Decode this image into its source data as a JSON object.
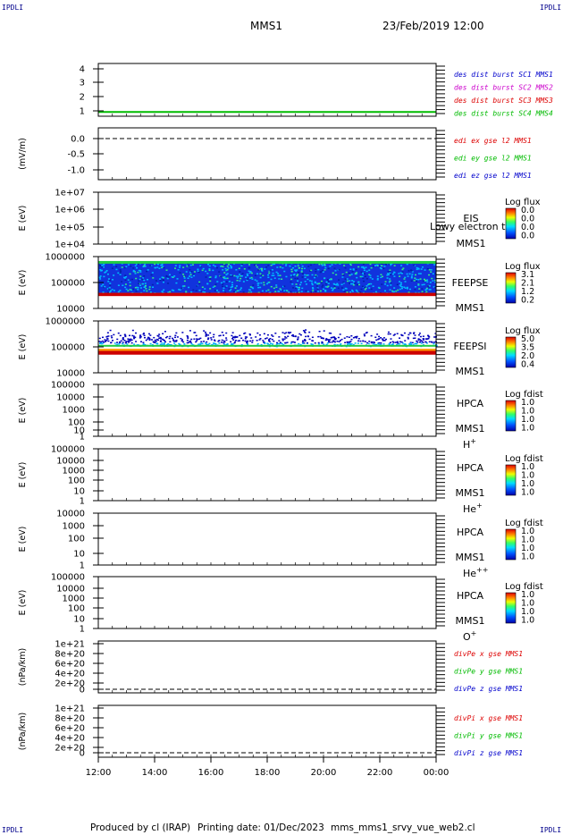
{
  "corner_label": "IPDLI",
  "header": {
    "mission": "MMS1",
    "datetime": "23/Feb/2019 12:00"
  },
  "footer": {
    "produced_by": "Produced by cl (IRAP)",
    "printing_date": "Printing date: 01/Dec/2023",
    "filename": "mms_mms1_srvy_vue_web2.cl"
  },
  "chart_data": [
    {
      "type": "line",
      "ylabel": "",
      "yticks": [
        "4",
        "3",
        "2",
        "1"
      ],
      "ylim": [
        0.7,
        4.4
      ],
      "legend": [
        {
          "label": "des dist burst SC1 MMS1",
          "color": "#0000cc"
        },
        {
          "label": "des dist burst SC2 MMS2",
          "color": "#cc00cc"
        },
        {
          "label": "des dist burst SC3 MMS3",
          "color": "#dd0000"
        },
        {
          "label": "des dist burst SC4 MMS4",
          "color": "#00bb00"
        }
      ],
      "series": [
        {
          "name": "des dist burst SC4 MMS4",
          "x": [
            "12:00",
            "00:00"
          ],
          "values": [
            1,
            1
          ],
          "color": "#00bb00"
        }
      ]
    },
    {
      "type": "line",
      "ylabel": "(mV/m)",
      "yticks": [
        "0.0",
        "-0.5",
        "-1.0"
      ],
      "ylim": [
        -1.3,
        0.2
      ],
      "dashed_zero": true,
      "legend": [
        {
          "label": "edi ex gse l2 MMS1",
          "color": "#dd0000"
        },
        {
          "label": "edi ey gse l2 MMS1",
          "color": "#00bb00"
        },
        {
          "label": "edi ez gse l2 MMS1",
          "color": "#0000cc"
        }
      ]
    },
    {
      "type": "heatmap",
      "ylabel": "E (eV)",
      "yticks": [
        "1e+07",
        "1e+06",
        "1e+05",
        "1e+04"
      ],
      "side_lines": [
        "EIS",
        "MMS1"
      ],
      "overlay_text": "Lowy electron to",
      "colorbar": {
        "title": "Log flux",
        "values": [
          "0.0",
          "0.0",
          "0.0",
          "0.0"
        ]
      }
    },
    {
      "type": "heatmap",
      "ylabel": "E (eV)",
      "yticks": [
        "1000000",
        "100000",
        "10000"
      ],
      "ylim": [
        10000,
        1000000
      ],
      "side_lines": [
        "FEEPSE",
        "MMS1"
      ],
      "colorbar": {
        "title": "Log flux",
        "values": [
          "3.1",
          "2.1",
          "1.2",
          "0.2"
        ]
      }
    },
    {
      "type": "heatmap",
      "ylabel": "E (eV)",
      "yticks": [
        "1000000",
        "100000",
        "10000"
      ],
      "ylim": [
        10000,
        1000000
      ],
      "side_lines": [
        "FEEPSI",
        "MMS1"
      ],
      "colorbar": {
        "title": "Log flux",
        "values": [
          "5.0",
          "3.5",
          "2.0",
          "0.4"
        ]
      }
    },
    {
      "type": "heatmap",
      "ylabel": "E (eV)",
      "yticks": [
        "100000",
        "10000",
        "1000",
        "100",
        "10",
        "1"
      ],
      "side_lines": [
        "HPCA",
        "MMS1"
      ],
      "species": "H",
      "charge": "+",
      "colorbar": {
        "title": "Log fdist",
        "values": [
          "1.0",
          "1.0",
          "1.0",
          "1.0"
        ]
      }
    },
    {
      "type": "heatmap",
      "ylabel": "E (eV)",
      "yticks": [
        "100000",
        "10000",
        "1000",
        "100",
        "10",
        "1"
      ],
      "side_lines": [
        "HPCA",
        "MMS1"
      ],
      "species": "He",
      "charge": "+",
      "colorbar": {
        "title": "Log fdist",
        "values": [
          "1.0",
          "1.0",
          "1.0",
          "1.0"
        ]
      }
    },
    {
      "type": "heatmap",
      "ylabel": "E (eV)",
      "yticks": [
        "10000",
        "1000",
        "100",
        "10",
        "1"
      ],
      "side_lines": [
        "HPCA",
        "MMS1"
      ],
      "species": "He",
      "charge": "++",
      "colorbar": {
        "title": "Log fdist",
        "values": [
          "1.0",
          "1.0",
          "1.0",
          "1.0"
        ]
      }
    },
    {
      "type": "heatmap",
      "ylabel": "E (eV)",
      "yticks": [
        "100000",
        "10000",
        "1000",
        "100",
        "10",
        "1"
      ],
      "side_lines": [
        "HPCA",
        "MMS1"
      ],
      "species": "O",
      "charge": "+",
      "colorbar": {
        "title": "Log fdist",
        "values": [
          "1.0",
          "1.0",
          "1.0",
          "1.0"
        ]
      }
    },
    {
      "type": "line",
      "ylabel": "(nPa/km)",
      "yticks": [
        "1e+21",
        "8e+20",
        "6e+20",
        "4e+20",
        "2e+20",
        "0"
      ],
      "dashed_zero": true,
      "legend": [
        {
          "label": "divPe x gse MMS1",
          "color": "#dd0000"
        },
        {
          "label": "divPe y gse MMS1",
          "color": "#00bb00"
        },
        {
          "label": "divPe z gse MMS1",
          "color": "#0000cc"
        }
      ]
    },
    {
      "type": "line",
      "ylabel": "(nPa/km)",
      "yticks": [
        "1e+21",
        "8e+20",
        "6e+20",
        "4e+20",
        "2e+20",
        "0"
      ],
      "dashed_zero": true,
      "legend": [
        {
          "label": "divPi x gse MMS1",
          "color": "#dd0000"
        },
        {
          "label": "divPi y gse MMS1",
          "color": "#00bb00"
        },
        {
          "label": "divPi z gse MMS1",
          "color": "#0000cc"
        }
      ]
    }
  ],
  "x_axis": {
    "ticks": [
      "12:00",
      "14:00",
      "16:00",
      "18:00",
      "20:00",
      "22:00",
      "00:00"
    ]
  },
  "spectrogram": {
    "feepse": {
      "red_band_eV": [
        30000,
        40000
      ],
      "green_line_eV": 600000,
      "blue_range_eV": [
        40000,
        600000
      ]
    },
    "feepsi": {
      "red_band_eV": [
        50000,
        70000
      ],
      "orange_line_eV": 75000,
      "green_line_eV": 110000,
      "scatter_range_eV": [
        110000,
        500000
      ]
    }
  }
}
